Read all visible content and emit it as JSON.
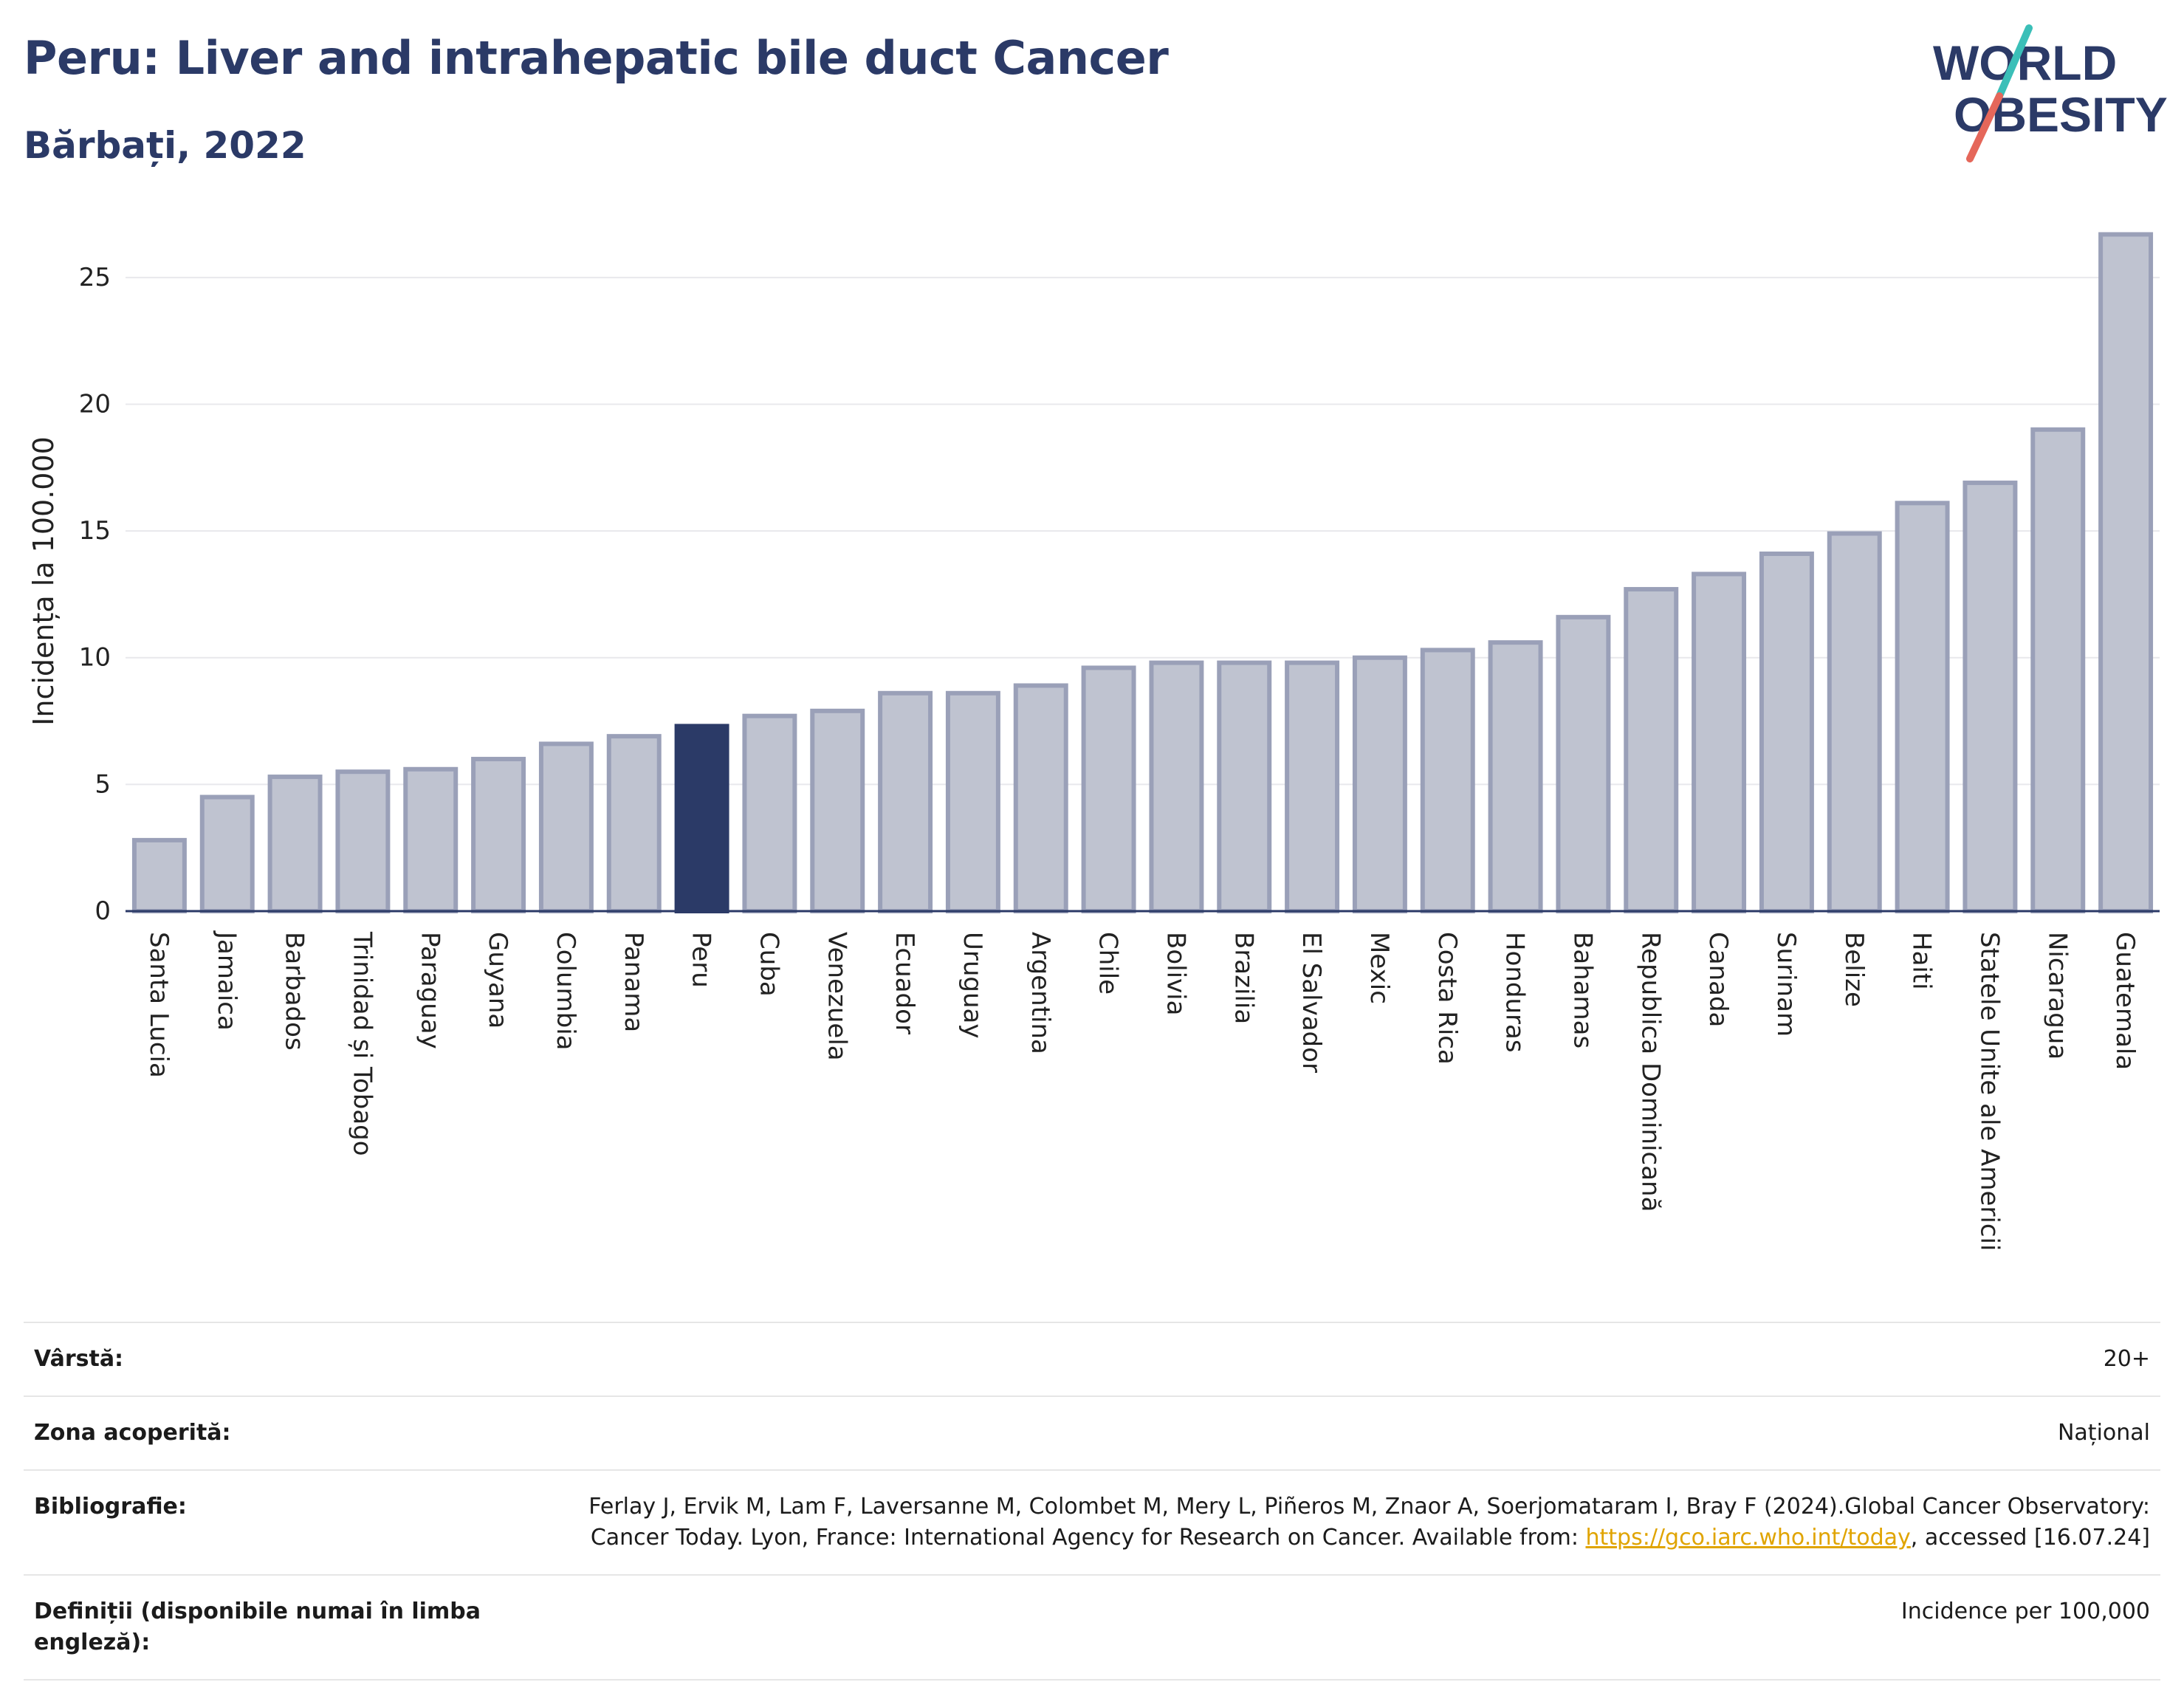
{
  "header": {
    "title": "Peru: Liver and intrahepatic bile duct Cancer",
    "subtitle": "Bărbați, 2022"
  },
  "logo": {
    "line1": "WORLD",
    "line2": "OBESITY"
  },
  "colors": {
    "highlight": "#2b3a67",
    "bar": "#bfc3d0",
    "bar_border": "#9aa0b8",
    "title": "#2b3a67"
  },
  "chart_data": {
    "type": "bar",
    "ylabel": "Incidența la 100.000",
    "ylim": [
      0,
      27.5
    ],
    "yticks": [
      0,
      5,
      10,
      15,
      20,
      25
    ],
    "grid": true,
    "highlight": "Peru",
    "categories": [
      "Santa Lucia",
      "Jamaica",
      "Barbados",
      "Trinidad și Tobago",
      "Paraguay",
      "Guyana",
      "Columbia",
      "Panama",
      "Peru",
      "Cuba",
      "Venezuela",
      "Ecuador",
      "Uruguay",
      "Argentina",
      "Chile",
      "Bolivia",
      "Brazilia",
      "El Salvador",
      "Mexic",
      "Costa Rica",
      "Honduras",
      "Bahamas",
      "Republica Dominicană",
      "Canada",
      "Surinam",
      "Belize",
      "Haiti",
      "Statele Unite ale Americii",
      "Nicaragua",
      "Guatemala"
    ],
    "values": [
      2.8,
      4.5,
      5.3,
      5.5,
      5.6,
      6.0,
      6.6,
      6.9,
      7.3,
      7.7,
      7.9,
      8.6,
      8.6,
      8.9,
      9.6,
      9.8,
      9.8,
      9.8,
      10.0,
      10.3,
      10.6,
      11.6,
      12.7,
      13.3,
      14.1,
      14.9,
      16.1,
      16.9,
      19.0,
      26.7
    ]
  },
  "meta": {
    "age_label": "Vârstă:",
    "age_value": "20+",
    "zone_label": "Zona acoperită:",
    "zone_value": "Național",
    "biblio_label": "Bibliografie:",
    "biblio_text": "Ferlay J, Ervik M, Lam F, Laversanne M, Colombet M, Mery L, Piñeros M, Znaor A, Soerjomataram I, Bray F (2024).Global Cancer Observatory: Cancer Today. Lyon, France: International Agency for Research on Cancer. Available from: ",
    "biblio_link": "https://gco.iarc.who.int/today",
    "biblio_tail": ", accessed [16.07.24]",
    "def_label": "Definiții (disponibile numai în limba engleză):",
    "def_value": "Incidence per 100,000"
  }
}
